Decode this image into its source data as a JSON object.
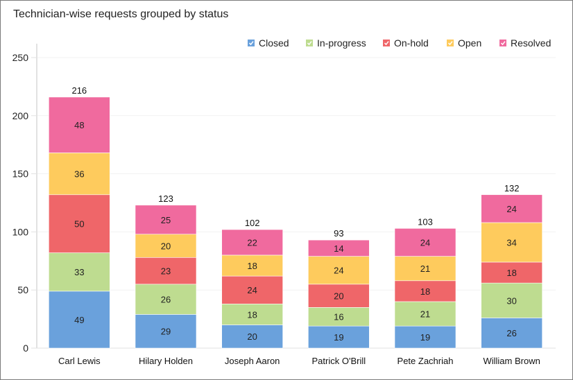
{
  "chart_data": {
    "type": "bar",
    "stacked": true,
    "title": "Technician-wise requests grouped by status",
    "xlabel": "",
    "ylabel": "",
    "ylim": [
      0,
      250
    ],
    "yticks": [
      "0",
      "50",
      "100",
      "150",
      "200",
      "250"
    ],
    "grid": true,
    "legend_position": "top-right",
    "categories": [
      "Carl Lewis",
      "Hilary Holden",
      "Joseph Aaron",
      "Patrick O'Brill",
      "Pete Zachriah",
      "William Brown"
    ],
    "totals": [
      "216",
      "123",
      "102",
      "93",
      "103",
      "132"
    ],
    "series": [
      {
        "name": "Closed",
        "color": "#6aa1dc",
        "values": [
          49,
          29,
          20,
          19,
          19,
          26
        ]
      },
      {
        "name": "In-progress",
        "color": "#bedc90",
        "values": [
          33,
          26,
          18,
          16,
          21,
          30
        ]
      },
      {
        "name": "On-hold",
        "color": "#ef6669",
        "values": [
          50,
          23,
          24,
          20,
          18,
          18
        ]
      },
      {
        "name": "Open",
        "color": "#fecb5d",
        "values": [
          36,
          20,
          18,
          24,
          21,
          34
        ]
      },
      {
        "name": "Resolved",
        "color": "#f06a9e",
        "values": [
          48,
          25,
          22,
          14,
          24,
          24
        ]
      }
    ]
  }
}
